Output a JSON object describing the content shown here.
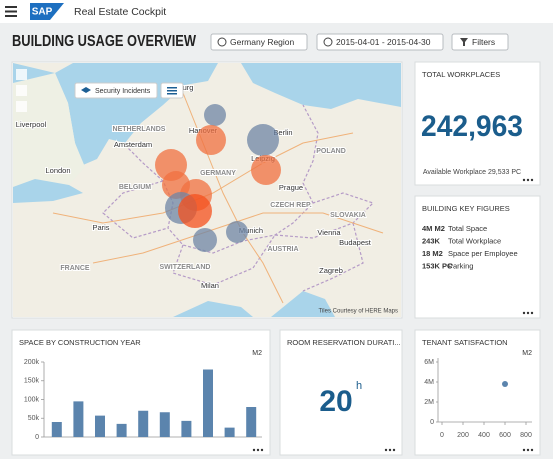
{
  "header": {
    "logo": "SAP",
    "app_title": "Real Estate Cockpit"
  },
  "page_title": "BUILDING USAGE OVERVIEW",
  "toolbar": [
    "Germany Region",
    "2015-04-01 - 2015-04-30",
    "Filters"
  ],
  "map": {
    "layer_button": "Security Incidents",
    "attribution": "Tiles Courtesy of HERE Maps",
    "labels": [
      "Hamburg",
      "Berlin",
      "Hanover",
      "NETHERLANDS",
      "Amsterdam",
      "Liverpool",
      "London",
      "BELGIUM",
      "GERMANY",
      "Leipzig",
      "POLAND",
      "Prague",
      "CZECH REP.",
      "SLOVAKIA",
      "Paris",
      "Munich",
      "Vienna",
      "AUSTRIA",
      "Budapest",
      "SWITZERLAND",
      "Milan",
      "Zagreb",
      "FRANCE"
    ]
  },
  "total_workplaces": {
    "title": "TOTAL WORKPLACES",
    "value": "242,963",
    "footnote": "Available Workplace 29,533 PC"
  },
  "key_figures": {
    "title": "BUILDING KEY FIGURES",
    "rows": [
      {
        "value": "4M M2",
        "label": "Total Space"
      },
      {
        "value": "243K",
        "label": "Total Workplace"
      },
      {
        "value": "18 M2",
        "label": "Space per Employee"
      },
      {
        "value": "153K PC",
        "label": "Parking"
      }
    ]
  },
  "room_reservation": {
    "title": "ROOM RESERVATION DURATI...",
    "value": "20",
    "unit": "h"
  },
  "chart_data": [
    {
      "type": "bar",
      "title": "SPACE BY CONSTRUCTION YEAR",
      "unit": "M2",
      "color": "#5b84ad",
      "values": [
        40000,
        95000,
        57000,
        35000,
        70000,
        66000,
        43000,
        180000,
        25000,
        80000
      ],
      "ylim": [
        0,
        200000
      ],
      "yticks": [
        0,
        {
          "value": 50000,
          "label": "50k"
        },
        {
          "value": 100000,
          "label": "100k"
        },
        {
          "value": 150000,
          "label": "150k"
        },
        {
          "value": 200000,
          "label": "200k"
        }
      ]
    },
    {
      "type": "scatter",
      "title": "TENANT SATISFACTION",
      "unit": "M2",
      "color": "#5b84ad",
      "x": [
        600
      ],
      "values": [
        3800000
      ],
      "xlim": [
        0,
        800
      ],
      "xticks": [
        0,
        200,
        400,
        600,
        800
      ],
      "ylim": [
        0,
        6000000
      ],
      "yticks": [
        0,
        {
          "value": 2000000,
          "label": "2M"
        },
        {
          "value": 4000000,
          "label": "4M"
        },
        {
          "value": 6000000,
          "label": "6M"
        }
      ]
    }
  ]
}
